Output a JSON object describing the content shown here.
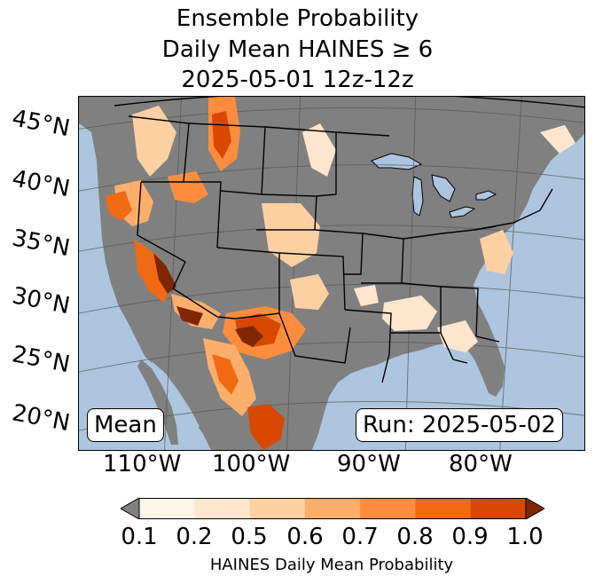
{
  "title": {
    "line1": "Ensemble Probability",
    "line2": "Daily Mean HAINES ≥ 6",
    "line3": "2025-05-01 12z-12z"
  },
  "map": {
    "latitude_labels": [
      "45°N",
      "40°N",
      "35°N",
      "30°N",
      "25°N",
      "20°N"
    ],
    "longitude_labels": [
      "110°W",
      "100°W",
      "90°W",
      "80°W"
    ],
    "mean_label": "Mean",
    "run_label": "Run: 2025-05-02",
    "colors": {
      "ocean": "#aec5df",
      "land": "#808080",
      "grid": "#555555",
      "border": "#000000"
    }
  },
  "colorbar": {
    "label": "HAINES Daily Mean Probability",
    "ticks": [
      "0.1",
      "0.2",
      "0.5",
      "0.6",
      "0.7",
      "0.8",
      "0.9",
      "1.0"
    ],
    "under_color": "#808080",
    "over_color": "#7f2704",
    "bins": [
      "#fff5eb",
      "#fee6ce",
      "#fdd0a2",
      "#fdae6b",
      "#fd8d3c",
      "#f16913",
      "#d94801"
    ]
  }
}
